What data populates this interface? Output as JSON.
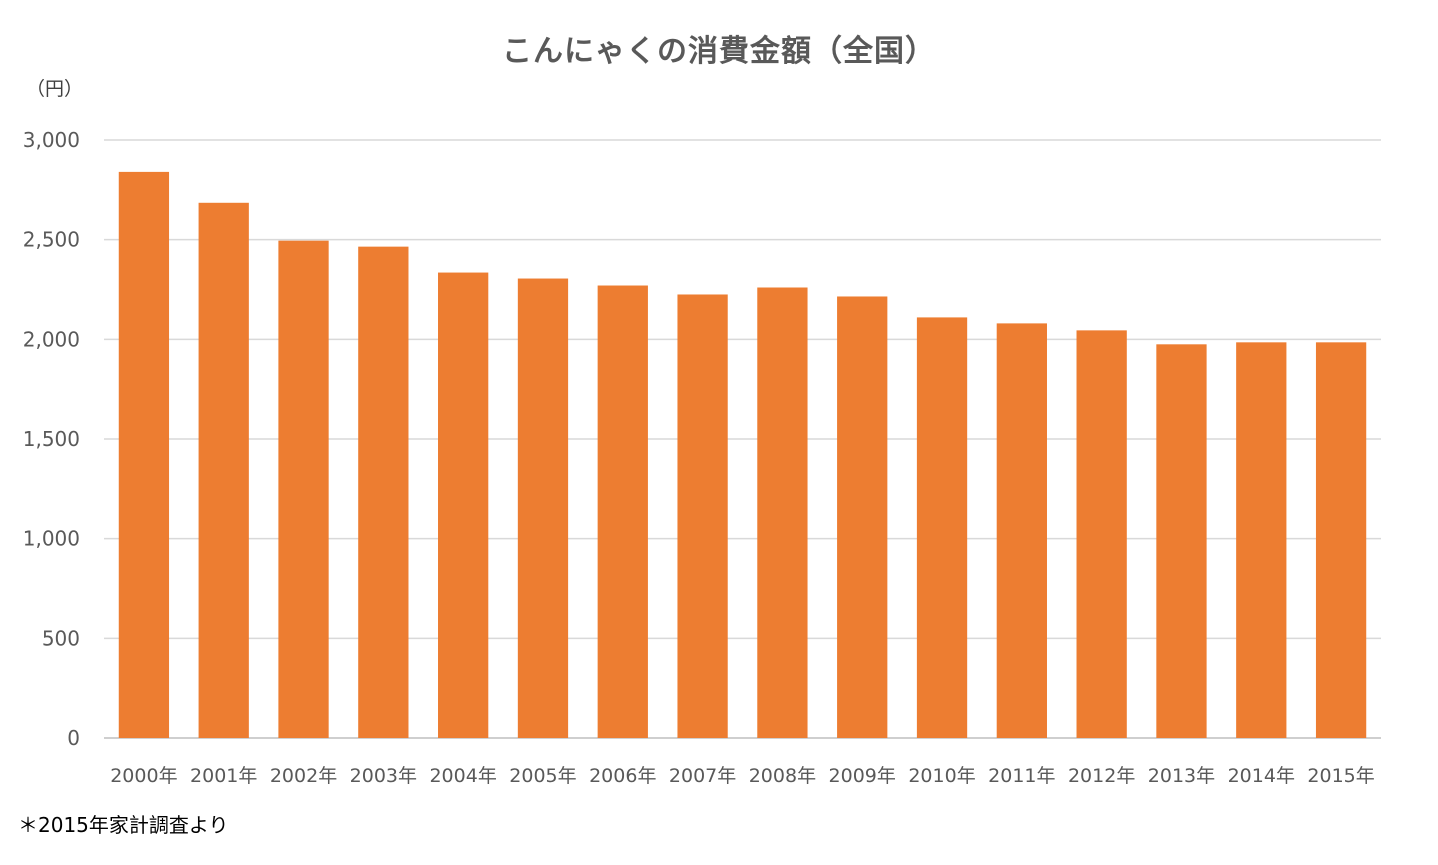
{
  "chart_data": {
    "type": "bar",
    "title": "こんにゃくの消費金額（全国）",
    "ylabel": "（円）",
    "xlabel": "",
    "footnote": "＊2015年家計調査より",
    "ylim": [
      0,
      3000
    ],
    "yticks": [
      0,
      500,
      1000,
      1500,
      2000,
      2500,
      3000
    ],
    "ytick_labels": [
      "0",
      "500",
      "1,000",
      "1,500",
      "2,000",
      "2,500",
      "3,000"
    ],
    "grid": true,
    "legend": "none",
    "colors": {
      "bar": "#ED7D31",
      "grid": "#D9D9D9",
      "text": "#595959"
    },
    "categories": [
      "2000年",
      "2001年",
      "2002年",
      "2003年",
      "2004年",
      "2005年",
      "2006年",
      "2007年",
      "2008年",
      "2009年",
      "2010年",
      "2011年",
      "2012年",
      "2013年",
      "2014年",
      "2015年"
    ],
    "values": [
      2840,
      2685,
      2495,
      2465,
      2335,
      2305,
      2270,
      2225,
      2260,
      2215,
      2110,
      2080,
      2045,
      1975,
      1985,
      1985
    ]
  }
}
